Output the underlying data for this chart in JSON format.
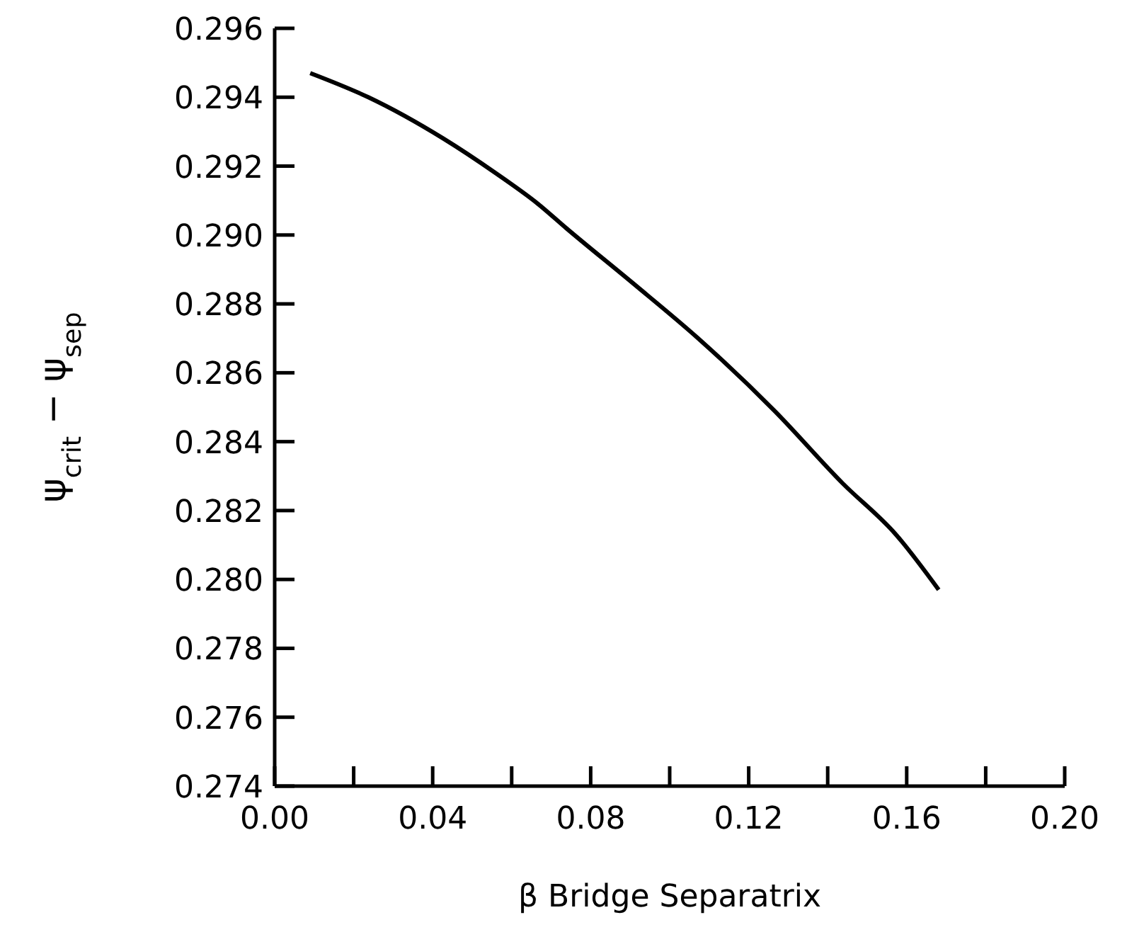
{
  "chart_data": {
    "type": "line",
    "xlabel": "β Bridge Separatrix",
    "ylabel": "ψ$_{crit}$ − ψ$_{sep}$",
    "xlim": [
      0,
      0.2
    ],
    "ylim": [
      0.274,
      0.296
    ],
    "xticks": [
      {
        "value": 0,
        "label": "0.00"
      },
      {
        "value": 0.02,
        "label": null
      },
      {
        "value": 0.04,
        "label": "0.04"
      },
      {
        "value": 0.06,
        "label": null
      },
      {
        "value": 0.08,
        "label": "0.08"
      },
      {
        "value": 0.1,
        "label": null
      },
      {
        "value": 0.12,
        "label": "0.12"
      },
      {
        "value": 0.14,
        "label": null
      },
      {
        "value": 0.16,
        "label": "0.16"
      },
      {
        "value": 0.18,
        "label": null
      },
      {
        "value": 0.2,
        "label": "0.20"
      }
    ],
    "yticks": [
      0.274,
      0.276,
      0.278,
      {
        "value": 0.28,
        "label": "0.280"
      },
      0.282,
      0.284,
      0.286,
      0.288,
      {
        "value": 0.29,
        "label": "0.290"
      },
      0.292,
      0.294,
      0.296
    ],
    "grid": false,
    "series": [
      {
        "color": "#000000",
        "x": [
          0.009,
          0.0237,
          0.0427,
          0.0559,
          0.0667,
          0.0738,
          0.0907,
          0.1072,
          0.1265,
          0.1437,
          0.1573,
          0.1681
        ],
        "values": [
          0.2947,
          0.294,
          0.2928,
          0.2918,
          0.2909,
          0.2902,
          0.2886,
          0.287,
          0.2849,
          0.2828,
          0.2813,
          0.2797
        ]
      }
    ]
  }
}
